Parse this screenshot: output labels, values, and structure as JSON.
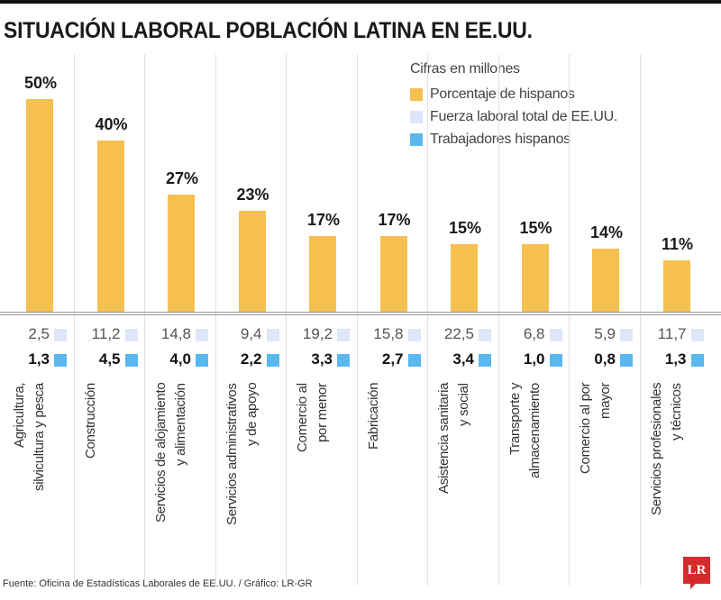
{
  "chart_data": {
    "type": "bar",
    "title": "SITUACIÓN LABORAL POBLACIÓN LATINA EN EE.UU.",
    "legend_title": "Cifras en millones",
    "legend_placement": "top-right",
    "categories": [
      [
        "Agricultura,",
        "silvicultura y pesca"
      ],
      [
        "Construcción"
      ],
      [
        "Servicios de alojamiento",
        "y alimentación"
      ],
      [
        "Servicios administrativos",
        "y de apoyo"
      ],
      [
        "Comercio al",
        "por menor"
      ],
      [
        "Fabricación"
      ],
      [
        "Asistencia sanitaria",
        "y social"
      ],
      [
        "Transporte y",
        "almacenamiento"
      ],
      [
        "Comercio al por",
        "mayor"
      ],
      [
        "Servicios profesionales",
        "y técnicos"
      ]
    ],
    "series": [
      {
        "name": "Porcentaje de hispanos",
        "color": "#f5c04f",
        "values": [
          50,
          40,
          27,
          23,
          17,
          17,
          15,
          15,
          14,
          11
        ],
        "labels": [
          "50%",
          "40%",
          "27%",
          "23%",
          "17%",
          "17%",
          "15%",
          "15%",
          "14%",
          "11%"
        ]
      },
      {
        "name": "Fuerza laboral total de EE.UU.",
        "color": "#dfe6fa",
        "values": [
          2.5,
          11.2,
          14.8,
          9.4,
          19.2,
          15.8,
          22.5,
          6.8,
          5.9,
          11.7
        ],
        "labels": [
          "2,5",
          "11,2",
          "14,8",
          "9,4",
          "19,2",
          "15,8",
          "22,5",
          "6,8",
          "5,9",
          "11,7"
        ]
      },
      {
        "name": "Trabajadores hispanos",
        "color": "#5bb8ee",
        "values": [
          1.3,
          4.5,
          4.0,
          2.2,
          3.3,
          2.7,
          3.4,
          1.0,
          0.8,
          1.3
        ],
        "labels": [
          "1,3",
          "4,5",
          "4,0",
          "2,2",
          "3,3",
          "2,7",
          "3,4",
          "1,0",
          "0,8",
          "1,3"
        ]
      }
    ],
    "ylim": [
      0,
      50
    ],
    "grid": false
  },
  "footer": {
    "source": "Fuente: Oficina de Estadísticas Laborales de EE.UU. / Gráfico: LR-GR",
    "logo": "LR"
  }
}
